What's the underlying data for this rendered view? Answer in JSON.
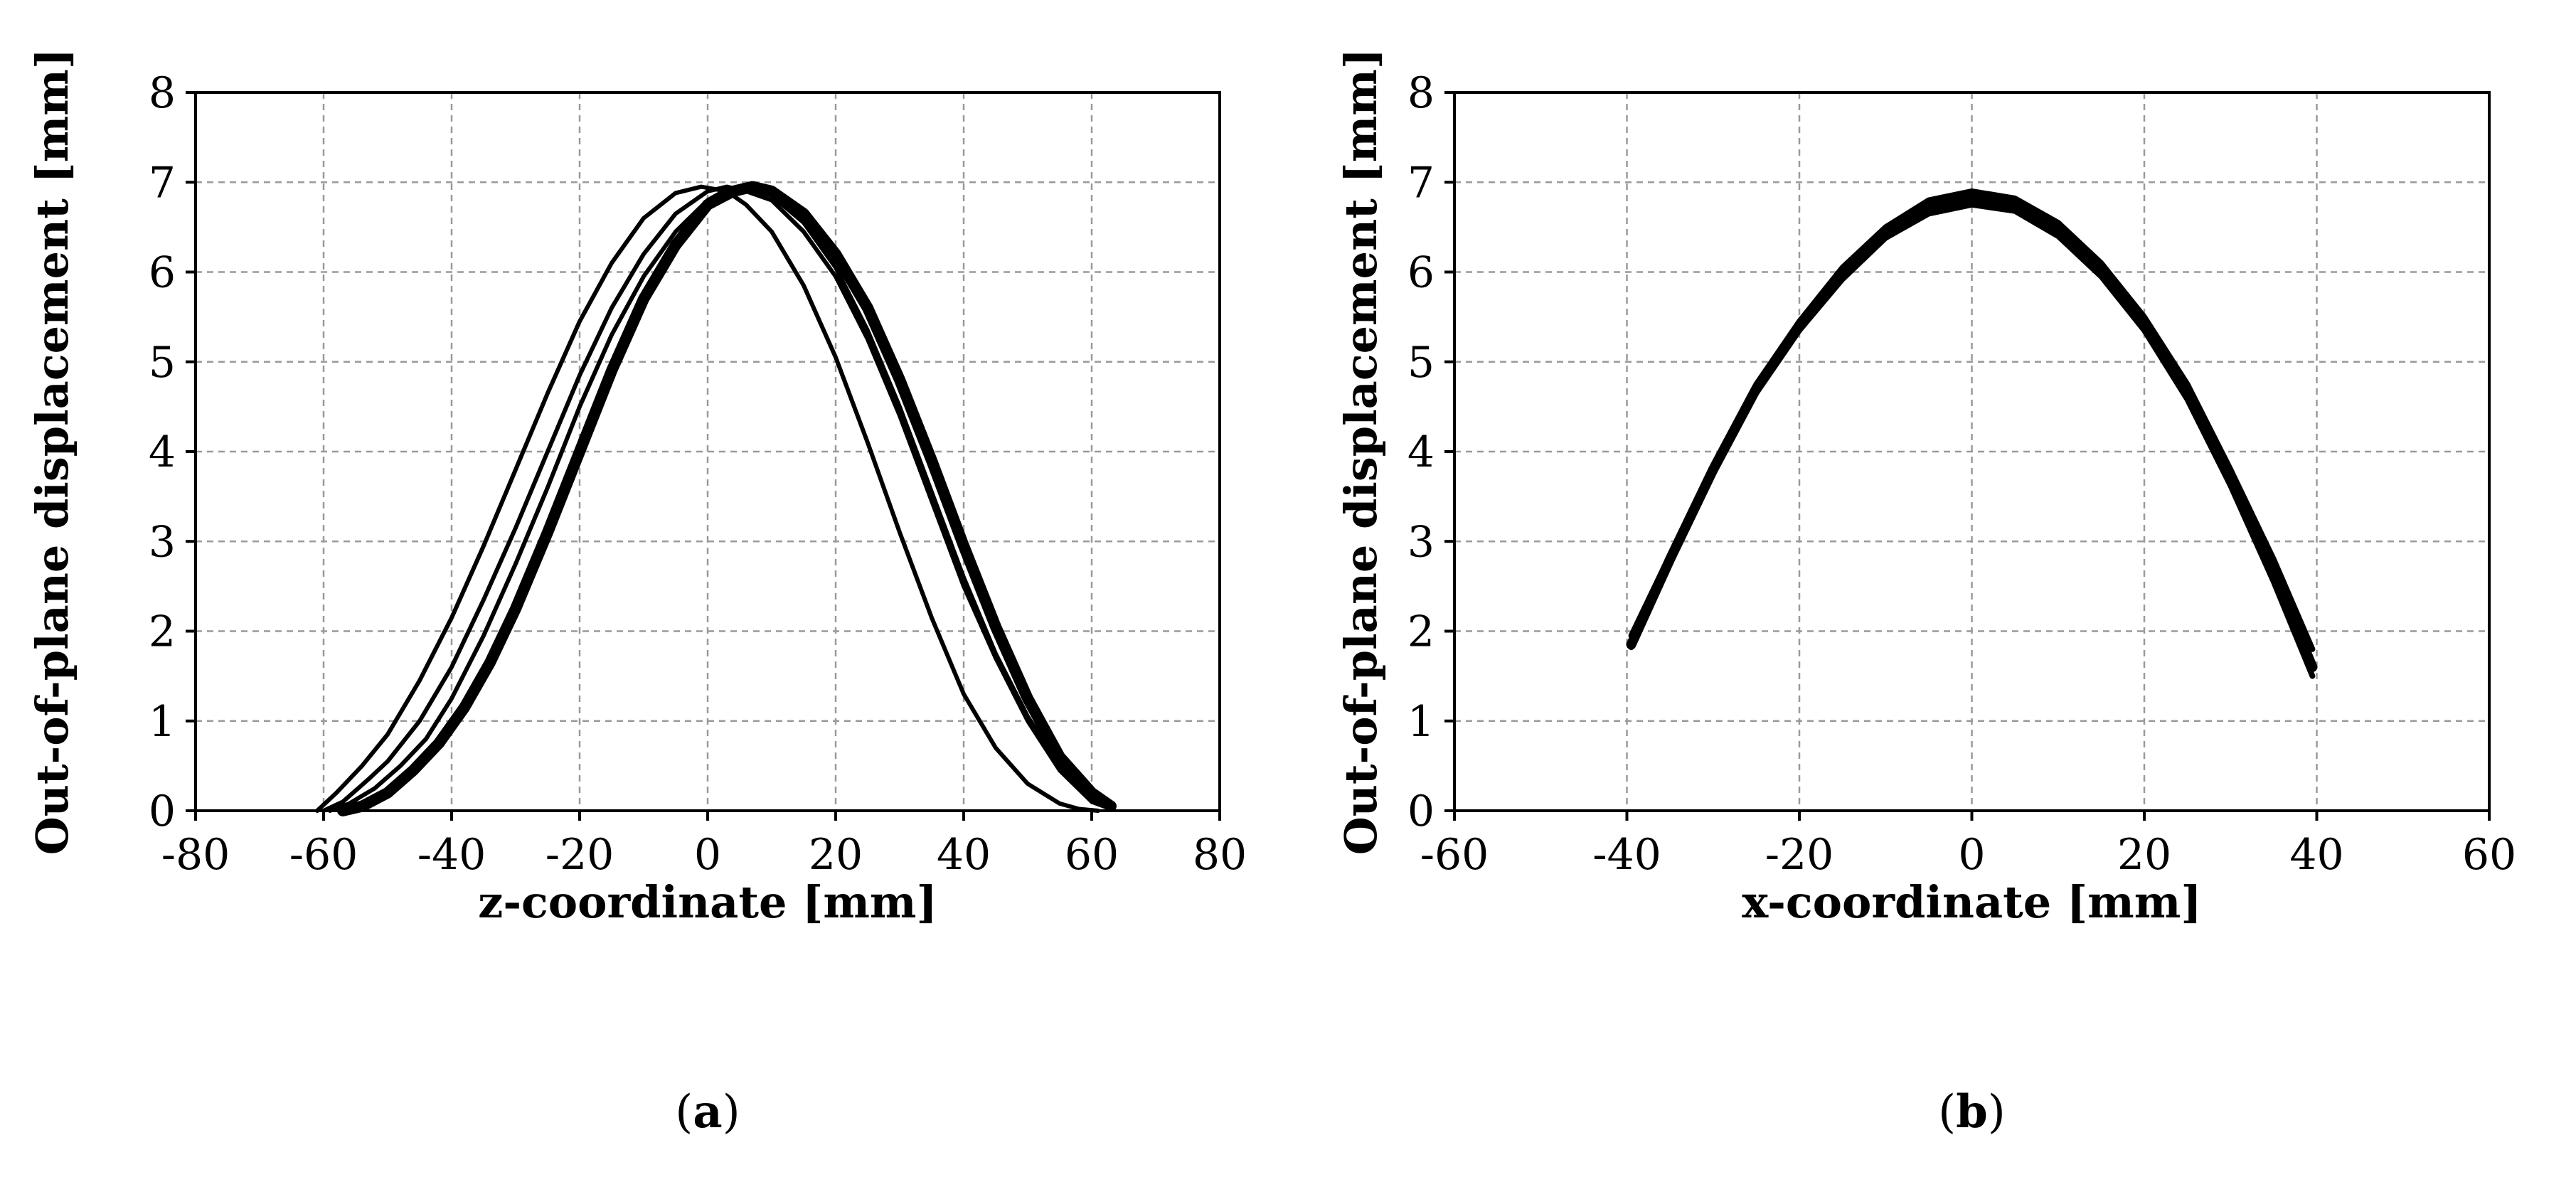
{
  "chart_data": [
    {
      "type": "line",
      "panel_label": "(a)",
      "panel_letter": "a",
      "title": "",
      "xlabel": "z-coordinate [mm]",
      "ylabel": "Out-of-plane displacement [mm]",
      "xlim": [
        -80,
        80
      ],
      "ylim": [
        0,
        8
      ],
      "xticks": [
        -80,
        -60,
        -40,
        -20,
        0,
        20,
        40,
        60,
        80
      ],
      "yticks": [
        0,
        1,
        2,
        3,
        4,
        5,
        6,
        7,
        8
      ],
      "grid": true,
      "legend": "none",
      "series": [
        {
          "name": "curve-1",
          "width": 6,
          "x": [
            -61,
            -58,
            -54,
            -50,
            -45,
            -40,
            -35,
            -30,
            -25,
            -20,
            -15,
            -10,
            -5,
            -1,
            3,
            6,
            10,
            15,
            20,
            25,
            30,
            35,
            40,
            45,
            50,
            55,
            58,
            61
          ],
          "y": [
            0,
            0.2,
            0.5,
            0.85,
            1.45,
            2.15,
            2.95,
            3.8,
            4.65,
            5.45,
            6.1,
            6.6,
            6.88,
            6.95,
            6.9,
            6.75,
            6.45,
            5.85,
            5.05,
            4.1,
            3.1,
            2.15,
            1.3,
            0.7,
            0.3,
            0.08,
            0.02,
            0
          ]
        },
        {
          "name": "curve-2",
          "width": 6,
          "x": [
            -60,
            -57,
            -53,
            -50,
            -45,
            -40,
            -35,
            -30,
            -25,
            -20,
            -15,
            -10,
            -5,
            0,
            3,
            6,
            10,
            15,
            20,
            25,
            30,
            35,
            40,
            45,
            50,
            55,
            60,
            63
          ],
          "y": [
            0,
            0.1,
            0.35,
            0.55,
            1.0,
            1.6,
            2.35,
            3.15,
            4.0,
            4.85,
            5.6,
            6.2,
            6.65,
            6.9,
            6.95,
            6.9,
            6.8,
            6.45,
            5.95,
            5.25,
            4.4,
            3.45,
            2.5,
            1.7,
            1.0,
            0.45,
            0.1,
            0.02
          ]
        },
        {
          "name": "curve-3",
          "width": 6,
          "x": [
            -59,
            -56,
            -52,
            -48,
            -44,
            -40,
            -35,
            -30,
            -25,
            -20,
            -15,
            -10,
            -5,
            0,
            3,
            6,
            10,
            15,
            20,
            25,
            30,
            35,
            40,
            45,
            50,
            55,
            60,
            63
          ],
          "y": [
            0,
            0.08,
            0.25,
            0.5,
            0.8,
            1.25,
            1.95,
            2.75,
            3.6,
            4.5,
            5.3,
            5.95,
            6.45,
            6.8,
            6.92,
            6.95,
            6.85,
            6.55,
            6.05,
            5.35,
            4.5,
            3.55,
            2.6,
            1.75,
            1.05,
            0.5,
            0.15,
            0.05
          ]
        },
        {
          "name": "curve-4",
          "width": 16,
          "x": [
            -57,
            -54,
            -50,
            -46,
            -42,
            -38,
            -34,
            -30,
            -25,
            -20,
            -15,
            -10,
            -5,
            0,
            4,
            7,
            10,
            15,
            20,
            25,
            30,
            35,
            40,
            45,
            50,
            55,
            60,
            63
          ],
          "y": [
            0,
            0.05,
            0.2,
            0.45,
            0.75,
            1.15,
            1.65,
            2.25,
            3.1,
            4.0,
            4.9,
            5.7,
            6.3,
            6.75,
            6.9,
            6.95,
            6.9,
            6.65,
            6.2,
            5.6,
            4.8,
            3.9,
            2.95,
            2.05,
            1.25,
            0.6,
            0.2,
            0.05
          ]
        }
      ]
    },
    {
      "type": "line",
      "panel_label": "(b)",
      "panel_letter": "b",
      "title": "",
      "xlabel": "x-coordinate [mm]",
      "ylabel": "Out-of-plane displacement [mm]",
      "xlim": [
        -60,
        60
      ],
      "ylim": [
        0,
        8
      ],
      "xticks": [
        -60,
        -40,
        -20,
        0,
        20,
        40,
        60
      ],
      "yticks": [
        0,
        1,
        2,
        3,
        4,
        5,
        6,
        7,
        8
      ],
      "grid": true,
      "legend": "none",
      "series": [
        {
          "name": "curve-band-upper",
          "width": 8,
          "x": [
            -39.5,
            -35,
            -30,
            -25,
            -20,
            -15,
            -10,
            -5,
            0,
            5,
            10,
            15,
            20,
            25,
            30,
            35,
            39.5
          ],
          "y": [
            1.95,
            2.85,
            3.85,
            4.75,
            5.45,
            6.05,
            6.5,
            6.8,
            6.9,
            6.82,
            6.55,
            6.1,
            5.5,
            4.75,
            3.8,
            2.8,
            1.8
          ]
        },
        {
          "name": "curve-band-middle",
          "width": 14,
          "x": [
            -39.5,
            -35,
            -30,
            -25,
            -20,
            -15,
            -10,
            -5,
            0,
            5,
            10,
            15,
            20,
            25,
            30,
            35,
            39.5
          ],
          "y": [
            1.85,
            2.8,
            3.8,
            4.7,
            5.4,
            6.0,
            6.45,
            6.72,
            6.82,
            6.75,
            6.48,
            6.02,
            5.42,
            4.65,
            3.7,
            2.65,
            1.6
          ]
        },
        {
          "name": "curve-band-lower",
          "width": 8,
          "x": [
            -39.5,
            -35,
            -30,
            -25,
            -20,
            -15,
            -10,
            -5,
            0,
            5,
            10,
            15,
            20,
            25,
            30,
            35,
            39.5
          ],
          "y": [
            1.82,
            2.75,
            3.75,
            4.65,
            5.35,
            5.92,
            6.38,
            6.65,
            6.75,
            6.68,
            6.4,
            5.95,
            5.35,
            4.58,
            3.62,
            2.55,
            1.5
          ]
        }
      ]
    }
  ]
}
